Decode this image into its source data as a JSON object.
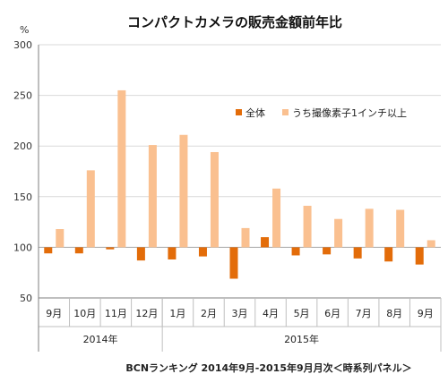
{
  "chart_data": {
    "type": "bar",
    "title": "コンパクトカメラの販売金額前年比",
    "ylabel": "%",
    "ylim": [
      50,
      300
    ],
    "yticks": [
      50,
      100,
      150,
      200,
      250,
      300
    ],
    "baseline": 100,
    "grid": true,
    "legend_position": "top-right",
    "categories": [
      "9月",
      "10月",
      "11月",
      "12月",
      "1月",
      "2月",
      "3月",
      "4月",
      "5月",
      "6月",
      "7月",
      "8月",
      "9月"
    ],
    "year_groups": [
      {
        "label": "2014年",
        "span": 4
      },
      {
        "label": "2015年",
        "span": 9
      }
    ],
    "series": [
      {
        "name": "全体",
        "color": "#e36c09",
        "values": [
          94,
          94,
          98,
          87,
          88,
          91,
          69,
          110,
          92,
          93,
          89,
          86,
          83
        ]
      },
      {
        "name": "うち撮像素子1インチ以上",
        "color": "#fac090",
        "values": [
          118,
          176,
          255,
          201,
          211,
          194,
          119,
          158,
          141,
          128,
          138,
          137,
          107
        ]
      }
    ],
    "footnote": "BCNランキング 2014年9月-2015年9月月次＜時系列パネル＞"
  }
}
